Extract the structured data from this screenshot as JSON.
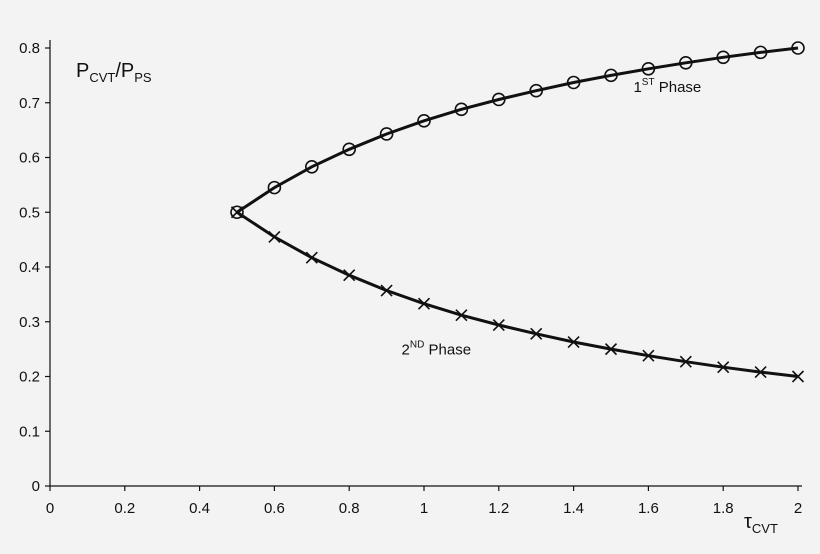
{
  "chart_data": {
    "type": "line",
    "xlabel": {
      "main": "τ",
      "sub": "CVT"
    },
    "ylabel": {
      "main": "P",
      "sub": "CVT",
      "mid": "/P",
      "sub2": "PS"
    },
    "xlim": [
      0,
      2
    ],
    "ylim": [
      0,
      0.8
    ],
    "xticks": [
      "0",
      "0.2",
      "0.4",
      "0.6",
      "0.8",
      "1",
      "1.2",
      "1.4",
      "1.6",
      "1.8",
      "2"
    ],
    "yticks": [
      "0",
      "0.1",
      "0.2",
      "0.3",
      "0.4",
      "0.5",
      "0.6",
      "0.7",
      "0.8"
    ],
    "grid": false,
    "series": [
      {
        "name": "1ST Phase",
        "marker": "circle",
        "x": [
          0.5,
          0.6,
          0.7,
          0.8,
          0.9,
          1.0,
          1.1,
          1.2,
          1.3,
          1.4,
          1.5,
          1.6,
          1.7,
          1.8,
          1.9,
          2.0
        ],
        "y": [
          0.5,
          0.545,
          0.583,
          0.615,
          0.643,
          0.667,
          0.688,
          0.706,
          0.722,
          0.737,
          0.75,
          0.762,
          0.773,
          0.783,
          0.792,
          0.8
        ]
      },
      {
        "name": "2ND Phase",
        "marker": "cross",
        "x": [
          0.5,
          0.6,
          0.7,
          0.8,
          0.9,
          1.0,
          1.1,
          1.2,
          1.3,
          1.4,
          1.5,
          1.6,
          1.7,
          1.8,
          1.9,
          2.0
        ],
        "y": [
          0.5,
          0.455,
          0.417,
          0.385,
          0.357,
          0.333,
          0.312,
          0.294,
          0.278,
          0.263,
          0.25,
          0.238,
          0.227,
          0.217,
          0.208,
          0.2
        ]
      }
    ],
    "annotations": [
      {
        "base": "1",
        "sup": "ST",
        "rest": " Phase",
        "x": 1.56,
        "y": 0.72
      },
      {
        "base": "2",
        "sup": "ND",
        "rest": " Phase",
        "x": 0.94,
        "y": 0.24
      }
    ]
  }
}
